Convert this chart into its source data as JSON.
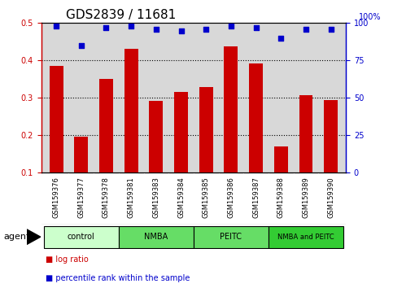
{
  "title": "GDS2839 / 11681",
  "categories": [
    "GSM159376",
    "GSM159377",
    "GSM159378",
    "GSM159381",
    "GSM159383",
    "GSM159384",
    "GSM159385",
    "GSM159386",
    "GSM159387",
    "GSM159388",
    "GSM159389",
    "GSM159390"
  ],
  "log_ratio": [
    0.385,
    0.197,
    0.35,
    0.432,
    0.292,
    0.315,
    0.33,
    0.438,
    0.392,
    0.17,
    0.308,
    0.295
  ],
  "percentile_rank": [
    98,
    85,
    97,
    98,
    96,
    95,
    96,
    98,
    97,
    90,
    96,
    96
  ],
  "bar_color": "#cc0000",
  "dot_color": "#0000cc",
  "ylim_left": [
    0.1,
    0.5
  ],
  "ylim_right": [
    0,
    100
  ],
  "yticks_left": [
    0.1,
    0.2,
    0.3,
    0.4,
    0.5
  ],
  "yticks_right": [
    0,
    25,
    50,
    75,
    100
  ],
  "groups": [
    {
      "label": "control",
      "start": 0,
      "end": 3,
      "color": "#ccffcc"
    },
    {
      "label": "NMBA",
      "start": 3,
      "end": 6,
      "color": "#66dd66"
    },
    {
      "label": "PEITC",
      "start": 6,
      "end": 9,
      "color": "#66dd66"
    },
    {
      "label": "NMBA and PEITC",
      "start": 9,
      "end": 12,
      "color": "#33cc33"
    }
  ],
  "legend_bar_label": "log ratio",
  "legend_dot_label": "percentile rank within the sample",
  "agent_label": "agent",
  "background_color": "#ffffff",
  "axis_bg_color": "#d8d8d8",
  "right_axis_color": "#0000cc",
  "left_axis_color": "#cc0000",
  "title_fontsize": 11,
  "tick_fontsize": 7,
  "bar_width": 0.55
}
